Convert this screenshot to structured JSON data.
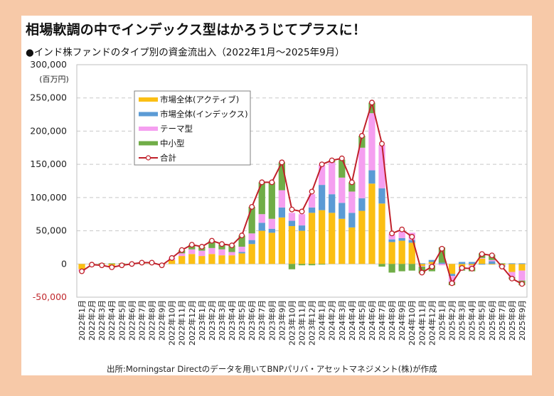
{
  "title": "相場軟調の中でインデックス型はかろうじてプラスに！",
  "subtitle": "●インド株ファンドのタイプ別の資金流出入（2022年1月～2025年9月）",
  "source": "出所:Morningstar Directのデータを用いてBNPパリバ・アセットマネジメント(株)が作成",
  "colors": {
    "active": "#fbbf14",
    "index": "#5b9bd5",
    "theme": "#f59ff0",
    "smallmid": "#70ad47",
    "total": "#c0202a",
    "negative_tick": "#c0282d",
    "background": "#f7c9a8"
  },
  "chart_data": {
    "type": "bar",
    "stacked": true,
    "title": "インド株ファンドのタイプ別の資金流出入（2022年1月～2025年9月）",
    "ylabel": "(百万円)",
    "xlabel": "",
    "ylim": [
      -50000,
      300000
    ],
    "yticks": [
      -50000,
      0,
      50000,
      100000,
      150000,
      200000,
      250000,
      300000
    ],
    "ytick_labels": [
      "-50,000",
      "0",
      "50,000",
      "100,000",
      "150,000",
      "200,000",
      "250,000",
      "300,000"
    ],
    "grid": true,
    "legend_position": "top-left",
    "categories": [
      "2022年1月",
      "2022年2月",
      "2022年3月",
      "2022年4月",
      "2022年5月",
      "2022年6月",
      "2022年7月",
      "2022年8月",
      "2022年9月",
      "2022年10月",
      "2022年11月",
      "2022年12月",
      "2023年1月",
      "2023年2月",
      "2023年3月",
      "2023年4月",
      "2023年5月",
      "2023年6月",
      "2023年7月",
      "2023年8月",
      "2023年9月",
      "2023年10月",
      "2023年11月",
      "2023年12月",
      "2024年1月",
      "2024年2月",
      "2024年3月",
      "2024年4月",
      "2024年5月",
      "2024年6月",
      "2024年7月",
      "2024年8月",
      "2024年9月",
      "2024年10月",
      "2024年11月",
      "2024年12月",
      "2025年1月",
      "2025年2月",
      "2025年3月",
      "2025年4月",
      "2025年5月",
      "2025年6月",
      "2025年7月",
      "2025年8月",
      "2025年9月"
    ],
    "series": [
      {
        "name": "市場全体(アクティブ)",
        "type": "bar",
        "color": "#fbbf14",
        "values": [
          -8000,
          -1000,
          -1000,
          -3000,
          -1000,
          0,
          1000,
          1000,
          -1000,
          6000,
          12000,
          15000,
          12000,
          15000,
          13000,
          13000,
          16000,
          30000,
          50000,
          47000,
          70000,
          57000,
          50000,
          77000,
          81000,
          77000,
          68000,
          55000,
          80000,
          121000,
          91000,
          33000,
          35000,
          32000,
          -3000,
          3000,
          0,
          -15000,
          -5000,
          -2000,
          8000,
          -1000,
          -2000,
          -12000,
          -10000
        ]
      },
      {
        "name": "市場全体(インデックス)",
        "type": "bar",
        "color": "#5b9bd5",
        "values": [
          0,
          0,
          0,
          0,
          0,
          0,
          0,
          0,
          0,
          0,
          0,
          0,
          0,
          0,
          0,
          0,
          2000,
          6000,
          12000,
          6000,
          15000,
          8000,
          8000,
          8000,
          38000,
          28000,
          24000,
          22000,
          19000,
          20000,
          23000,
          4000,
          4000,
          4000,
          1000,
          3000,
          2000,
          -3000,
          3000,
          3000,
          -1000,
          4000,
          -2000,
          1000,
          1000
        ]
      },
      {
        "name": "テーマ型",
        "type": "bar",
        "color": "#f59ff0",
        "values": [
          -3000,
          0,
          -1000,
          -2000,
          -1000,
          0,
          1000,
          1000,
          -1000,
          3000,
          4000,
          7000,
          8000,
          9000,
          9000,
          5000,
          8000,
          10000,
          13000,
          15000,
          26000,
          12000,
          17000,
          20000,
          30000,
          48000,
          38000,
          32000,
          76000,
          86000,
          65000,
          8000,
          10000,
          11000,
          -1000,
          -2000,
          -2000,
          -9000,
          -3000,
          -3000,
          1000,
          2000,
          -1000,
          -8000,
          -15000
        ]
      },
      {
        "name": "中小型",
        "type": "bar",
        "color": "#70ad47",
        "values": [
          0,
          0,
          1000,
          1000,
          1000,
          0,
          0,
          0,
          0,
          0,
          5000,
          7000,
          6000,
          11000,
          8000,
          10000,
          17000,
          40000,
          48000,
          55000,
          42000,
          -8000,
          -2000,
          -2000,
          -1000,
          3000,
          27000,
          14000,
          18000,
          16000,
          -4000,
          -13000,
          -11000,
          -10000,
          -10000,
          -9000,
          23000,
          -5000,
          -2000,
          -6000,
          7000,
          8000,
          1000,
          -3000,
          -7000
        ]
      },
      {
        "name": "合計",
        "type": "line",
        "color": "#c0202a",
        "values": [
          -11000,
          -1000,
          -2000,
          -5000,
          -2000,
          0,
          2000,
          2000,
          -2000,
          9000,
          21000,
          29000,
          26000,
          35000,
          30000,
          28000,
          43000,
          86000,
          123000,
          123000,
          153000,
          82000,
          79000,
          109000,
          150000,
          156000,
          159000,
          123000,
          193000,
          243000,
          181000,
          46000,
          52000,
          41000,
          -13000,
          -4000,
          23000,
          -29000,
          -6000,
          -7000,
          15000,
          13000,
          -4000,
          -22000,
          -30000
        ]
      }
    ]
  }
}
